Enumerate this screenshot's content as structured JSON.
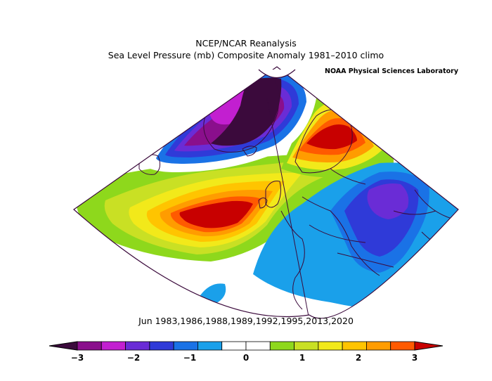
{
  "title_line1": "NCEP/NCAR Reanalysis",
  "title_line2": "Sea Level Pressure (mb) Composite Anomaly 1981–2010 climo",
  "credit": "NOAA Physical Sciences Laboratory",
  "composite_dates": "Jun 1983,1986,1988,1989,1992,1995,2013,2020",
  "colorbar": {
    "min": -3,
    "max": 3,
    "step": 0.5,
    "tick_labels": [
      "−3",
      "−2",
      "−1",
      "0",
      "1",
      "2",
      "3"
    ],
    "colors": [
      "#3b0a3c",
      "#8a0f8c",
      "#c21fd0",
      "#6a2cd6",
      "#2f3ad8",
      "#1a72e6",
      "#1aa0ea",
      "#ffffff",
      "#ffffff",
      "#8ed81c",
      "#c9e024",
      "#f2e91a",
      "#ffc400",
      "#ff9c00",
      "#ff5a00",
      "#c80000"
    ]
  },
  "map": {
    "projection": "conic",
    "region": "North Atlantic / Europe",
    "features": [
      {
        "name": "high-anomaly-atlantic",
        "sign": "positive",
        "peak": "> 3 mb",
        "location": "central North Atlantic"
      },
      {
        "name": "high-anomaly-scandinavia",
        "sign": "positive",
        "peak": "> 3 mb",
        "location": "Scandinavia"
      },
      {
        "name": "low-anomaly-greenland",
        "sign": "negative",
        "peak": "< -3 mb",
        "location": "Greenland"
      },
      {
        "name": "low-anomaly-europe",
        "sign": "negative",
        "peak": "about -2 mb",
        "location": "central / eastern Europe"
      }
    ]
  }
}
